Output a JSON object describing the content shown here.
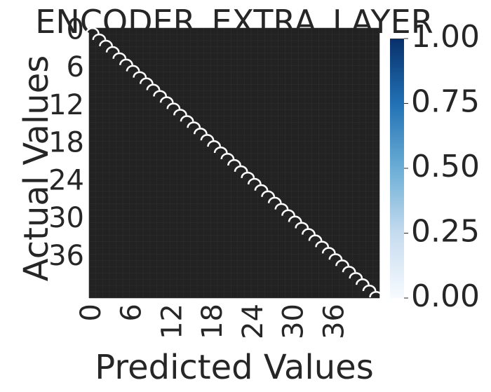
{
  "chart_data": {
    "type": "heatmap",
    "title": "ENCODER_EXTRA_LAYER",
    "xlabel": "Predicted Values",
    "ylabel": "Actual Values",
    "n_classes": 43,
    "x_ticks": [
      "0",
      "6",
      "12",
      "18",
      "24",
      "30",
      "36"
    ],
    "y_ticks": [
      "0",
      "6",
      "12",
      "18",
      "24",
      "30",
      "36"
    ],
    "colorbar": {
      "min": 0.0,
      "max": 1.0,
      "ticks": [
        "0.00",
        "0.25",
        "0.50",
        "0.75",
        "1.00"
      ],
      "colormap": "Blues"
    },
    "cell_annotations": "0",
    "background_color": "#222222",
    "annotation_color": "#ffffff"
  }
}
